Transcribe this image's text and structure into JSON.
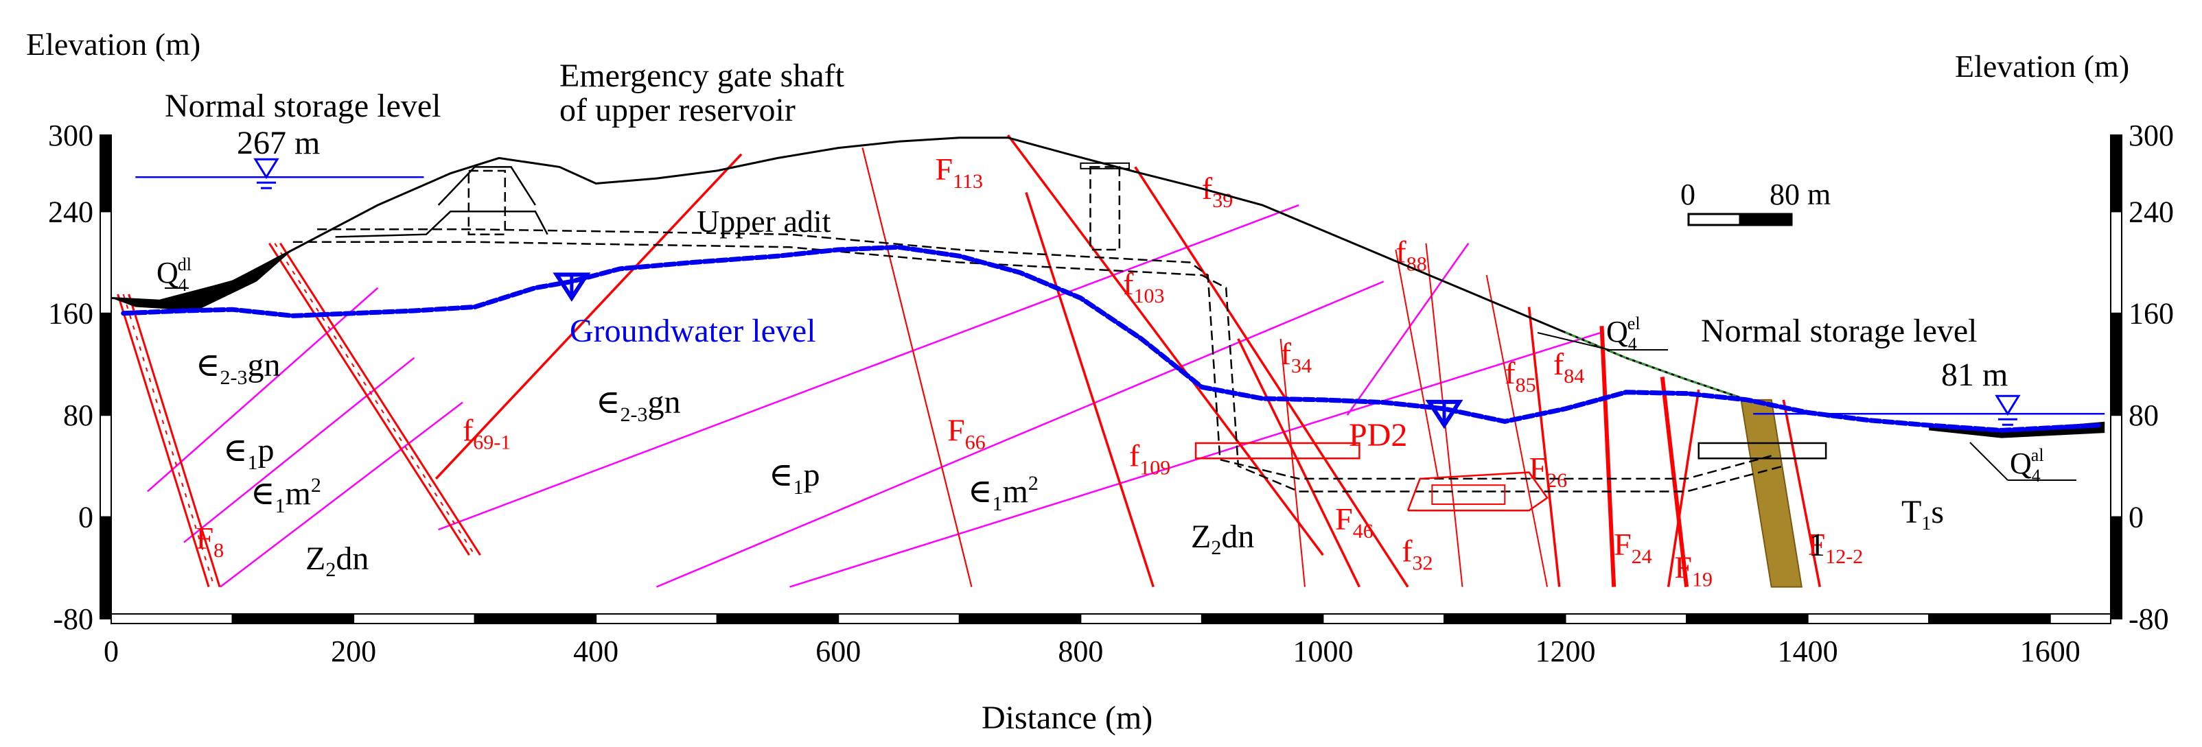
{
  "chart_data": {
    "type": "geological-section",
    "title": "",
    "xlabel": "Distance (m)",
    "ylabel_left": "Elevation (m)",
    "ylabel_right": "Elevation (m)",
    "xlim": [
      0,
      1650
    ],
    "ylim": [
      -80,
      300
    ],
    "x_ticks": [
      0,
      200,
      400,
      600,
      800,
      1000,
      1200,
      1400,
      1600
    ],
    "y_ticks": [
      -80,
      0,
      80,
      160,
      240,
      300
    ],
    "ground_surface": [
      [
        0,
        172
      ],
      [
        40,
        170
      ],
      [
        100,
        185
      ],
      [
        150,
        210
      ],
      [
        220,
        245
      ],
      [
        280,
        270
      ],
      [
        320,
        282
      ],
      [
        370,
        275
      ],
      [
        400,
        262
      ],
      [
        450,
        266
      ],
      [
        500,
        272
      ],
      [
        550,
        282
      ],
      [
        600,
        290
      ],
      [
        650,
        295
      ],
      [
        700,
        298
      ],
      [
        740,
        298
      ],
      [
        790,
        285
      ],
      [
        850,
        270
      ],
      [
        900,
        258
      ],
      [
        950,
        245
      ],
      [
        1000,
        225
      ],
      [
        1050,
        205
      ],
      [
        1100,
        185
      ],
      [
        1150,
        165
      ],
      [
        1200,
        145
      ],
      [
        1250,
        125
      ],
      [
        1300,
        108
      ],
      [
        1350,
        92
      ],
      [
        1400,
        82
      ],
      [
        1450,
        76
      ],
      [
        1500,
        72
      ],
      [
        1560,
        68
      ],
      [
        1620,
        72
      ],
      [
        1645,
        74
      ]
    ],
    "groundwater_level": [
      [
        10,
        160
      ],
      [
        60,
        162
      ],
      [
        100,
        163
      ],
      [
        150,
        158
      ],
      [
        200,
        160
      ],
      [
        250,
        162
      ],
      [
        300,
        165
      ],
      [
        350,
        180
      ],
      [
        380,
        185
      ],
      [
        420,
        195
      ],
      [
        480,
        200
      ],
      [
        550,
        205
      ],
      [
        600,
        210
      ],
      [
        650,
        212
      ],
      [
        700,
        205
      ],
      [
        750,
        192
      ],
      [
        800,
        172
      ],
      [
        850,
        140
      ],
      [
        900,
        102
      ],
      [
        950,
        93
      ],
      [
        1000,
        92
      ],
      [
        1050,
        90
      ],
      [
        1100,
        85
      ],
      [
        1150,
        75
      ],
      [
        1200,
        85
      ],
      [
        1250,
        98
      ],
      [
        1300,
        97
      ],
      [
        1350,
        92
      ],
      [
        1400,
        82
      ],
      [
        1450,
        76
      ],
      [
        1500,
        72
      ],
      [
        1560,
        68
      ],
      [
        1640,
        72
      ]
    ],
    "upper_reservoir_level_m": 267,
    "lower_reservoir_level_m": 81,
    "faults": [
      {
        "name": "F8",
        "label": "F",
        "sub": "8",
        "from": [
          10,
          175
        ],
        "to": [
          85,
          -55
        ],
        "style": "band"
      },
      {
        "name": "f69-1",
        "label": "f",
        "sub": "69-1",
        "from": [
          520,
          285
        ],
        "to": [
          268,
          30
        ],
        "style": "line"
      },
      {
        "name": "F113",
        "label": "F",
        "sub": "113",
        "from": [
          620,
          290
        ],
        "to": [
          710,
          -55
        ],
        "style": "thin"
      },
      {
        "name": "F66",
        "label": "F",
        "sub": "66",
        "from": [
          620,
          290
        ],
        "to": [
          710,
          -55
        ],
        "style": "thin"
      },
      {
        "name": "f39",
        "label": "f",
        "sub": "39",
        "from": [
          845,
          275
        ],
        "to": [
          1070,
          -55
        ],
        "style": "line"
      },
      {
        "name": "f103",
        "label": "f",
        "sub": "103",
        "from": [
          755,
          255
        ],
        "to": [
          860,
          -55
        ],
        "style": "line"
      },
      {
        "name": "f109",
        "label": "f",
        "sub": "109",
        "from": [
          740,
          300
        ],
        "to": [
          1000,
          -30
        ],
        "style": "line"
      },
      {
        "name": "f34",
        "label": "f",
        "sub": "34",
        "from": [
          965,
          140
        ],
        "to": [
          985,
          -55
        ],
        "style": "thin"
      },
      {
        "name": "F46",
        "label": "F",
        "sub": "46",
        "from": [
          930,
          140
        ],
        "to": [
          1030,
          -55
        ],
        "style": "line"
      },
      {
        "name": "f32",
        "label": "f",
        "sub": "32",
        "from": [
          1085,
          215
        ],
        "to": [
          1115,
          -55
        ],
        "style": "thin"
      },
      {
        "name": "f88",
        "label": "f",
        "sub": "88",
        "from": [
          1060,
          210
        ],
        "to": [
          1095,
          30
        ],
        "style": "thin"
      },
      {
        "name": "f85",
        "label": "f",
        "sub": "85",
        "from": [
          1135,
          190
        ],
        "to": [
          1185,
          -55
        ],
        "style": "thin"
      },
      {
        "name": "f84",
        "label": "f",
        "sub": "84",
        "from": [
          1170,
          165
        ],
        "to": [
          1195,
          -55
        ],
        "style": "line"
      },
      {
        "name": "F26",
        "label": "F",
        "sub": "26",
        "from": [
          1230,
          150
        ],
        "to": [
          1240,
          -55
        ],
        "style": "thick"
      },
      {
        "name": "F24",
        "label": "F",
        "sub": "24",
        "from": [
          1280,
          110
        ],
        "to": [
          1300,
          -55
        ],
        "style": "thick"
      },
      {
        "name": "F19",
        "label": "F",
        "sub": "19",
        "from": [
          1310,
          100
        ],
        "to": [
          1285,
          -55
        ],
        "style": "line"
      },
      {
        "name": "F12-2",
        "label": "F",
        "sub": "12-2",
        "from": [
          1380,
          92
        ],
        "to": [
          1410,
          -55
        ],
        "style": "line"
      }
    ],
    "contacts": [
      {
        "name": "contact-1",
        "from": [
          30,
          20
        ],
        "to": [
          220,
          180
        ]
      },
      {
        "name": "contact-2",
        "from": [
          60,
          -20
        ],
        "to": [
          250,
          125
        ]
      },
      {
        "name": "contact-3",
        "from": [
          90,
          -55
        ],
        "to": [
          290,
          90
        ]
      },
      {
        "name": "contact-4",
        "from": [
          270,
          -10
        ],
        "to": [
          980,
          245
        ]
      },
      {
        "name": "contact-5",
        "from": [
          450,
          -55
        ],
        "to": [
          1050,
          185
        ]
      },
      {
        "name": "contact-6",
        "from": [
          560,
          -55
        ],
        "to": [
          1230,
          145
        ]
      },
      {
        "name": "contact-7",
        "from": [
          1020,
          80
        ],
        "to": [
          1120,
          215
        ]
      }
    ],
    "features": {
      "surface_cover": "Q4 dl",
      "cover_right_1": "Q4 el",
      "cover_right_2": "Q4 al"
    }
  },
  "labels": {
    "elevation_left": "Elevation (m)",
    "elevation_right": "Elevation (m)",
    "distance": "Distance (m)",
    "upper_level_title": "Normal storage level",
    "upper_level_value": "267 m",
    "emergency_gate_line1": "Emergency gate shaft",
    "emergency_gate_line2": "of upper reservoir",
    "upper_adit": "Upper adit",
    "groundwater": "Groundwater level",
    "lower_level_title": "Normal storage level",
    "lower_level_value": "81 m",
    "scale_zero": "0",
    "scale_length": "80 m",
    "pd2": "PD2",
    "q4dl_main": "Q",
    "q4dl_sub": "4",
    "q4dl_sup": "dl",
    "q4el_main": "Q",
    "q4el_sub": "4",
    "q4el_sup": "el",
    "q4al_main": "Q",
    "q4al_sub": "4",
    "q4al_sup": "al",
    "t1s_main": "T",
    "t1s_sub": "1",
    "t1s_tail": "s",
    "gn_left_pre": "∈",
    "gn_left_sub": "2-3",
    "gn_left_tail": "gn",
    "gn_mid_pre": "∈",
    "gn_mid_sub": "2-3",
    "gn_mid_tail": "gn",
    "p_left_pre": "∈",
    "p_left_sub": "1",
    "p_left_tail": "p",
    "p_mid_pre": "∈",
    "p_mid_sub": "1",
    "p_mid_tail": "p",
    "m_left_pre": "∈",
    "m_left_sub": "1",
    "m_left_tail": "m",
    "m_left_sup": "2",
    "m_mid_pre": "∈",
    "m_mid_sub": "1",
    "m_mid_tail": "m",
    "m_mid_sup": "2",
    "zdn_left_main": "Z",
    "zdn_left_sub": "2",
    "zdn_left_tail": "dn",
    "zdn_mid_main": "Z",
    "zdn_mid_sub": "2",
    "zdn_mid_tail": "dn",
    "one_label": "1"
  },
  "colors": {
    "fault_red": "#ff0000",
    "contact_magenta": "#ff00ff",
    "groundwater_blue": "#0000ee",
    "water_line_blue": "#0000ff",
    "text_black": "#000000",
    "band_fill": "#a8862a",
    "cover_green": "#339933"
  }
}
